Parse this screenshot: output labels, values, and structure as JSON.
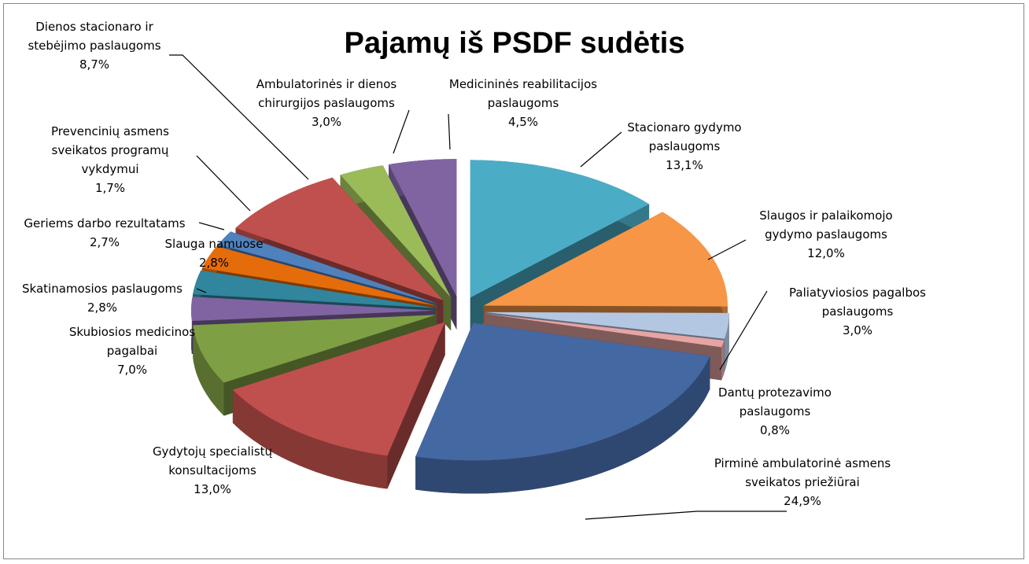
{
  "chart_data": {
    "type": "pie",
    "title": "Pajamų iš PSDF sudėtis",
    "categories": [
      "Stacionaro gydymo paslaugoms",
      "Slaugos ir palaikomojo gydymo paslaugoms",
      "Paliatyviosios pagalbos paslaugoms",
      "Dantų protezavimo paslaugoms",
      "Pirminė ambulatorinė asmens sveikatos priežiūrai",
      "Gydytojų specialistų konsultacijoms",
      "Skubiosios medicinos pagalbai",
      "Skatinamosios paslaugoms",
      "Slauga namuose",
      "Geriems darbo rezultatams",
      "Prevencinių asmens sveikatos programų vykdymui",
      "Dienos stacionaro ir stebėjimo paslaugoms",
      "Ambulatorinės ir dienos chirurgijos paslaugoms",
      "Medicininės reabilitacijos paslaugoms"
    ],
    "values": [
      13.1,
      12.0,
      3.0,
      0.8,
      24.9,
      13.0,
      7.0,
      2.8,
      2.8,
      2.7,
      1.7,
      8.7,
      3.0,
      4.5
    ],
    "value_labels": [
      "13,1%",
      "12,0%",
      "3,0%",
      "0,8%",
      "24,9%",
      "13,0%",
      "7,0%",
      "2,8%",
      "2,8%",
      "2,7%",
      "1,7%",
      "8,7%",
      "3,0%",
      "4,5%"
    ],
    "colors": [
      "#4bacc6",
      "#f79646",
      "#b4c7e2",
      "#e6a5a3",
      "#4468a2",
      "#c0504d",
      "#7f9f45",
      "#8064a2",
      "#31859c",
      "#e46c0a",
      "#4f81bd",
      "#c0504d",
      "#9bbb59",
      "#8064a2"
    ]
  }
}
